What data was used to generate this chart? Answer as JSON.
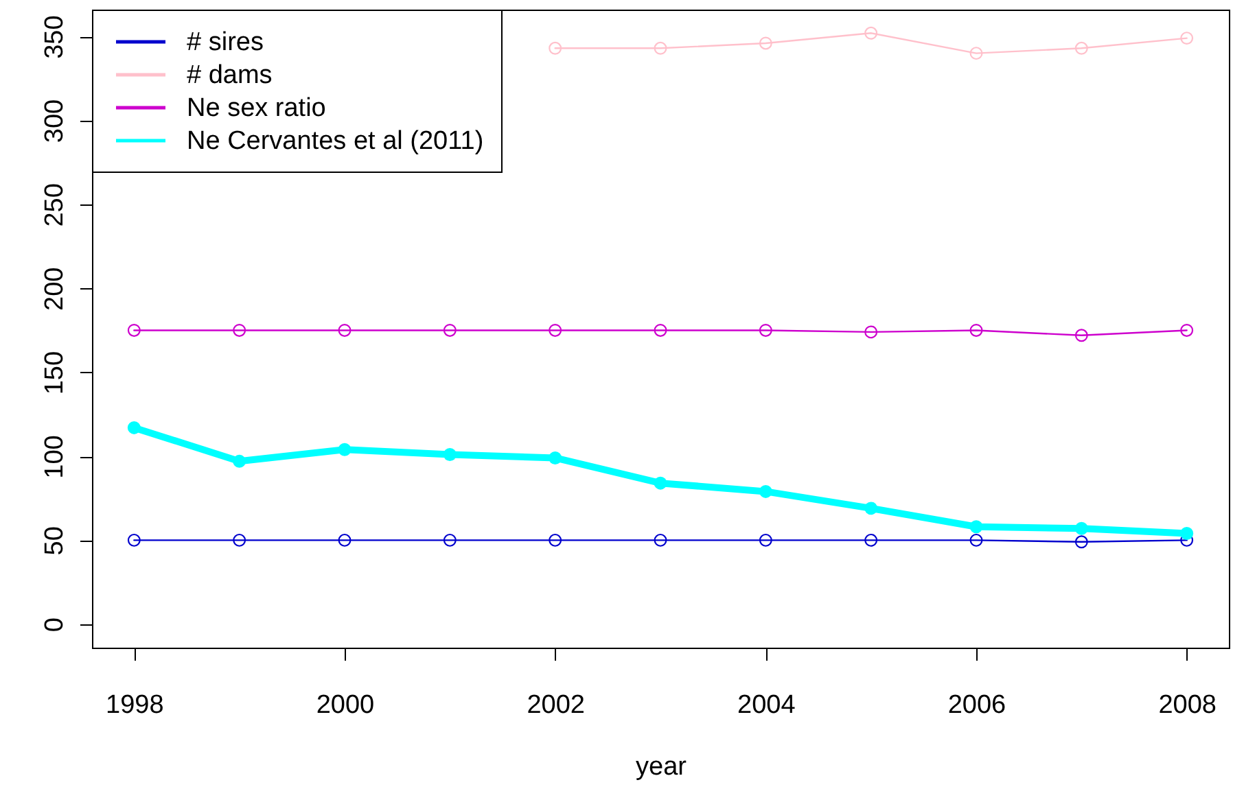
{
  "chart_data": {
    "type": "line",
    "xlabel": "year",
    "x": [
      1998,
      1999,
      2000,
      2001,
      2002,
      2003,
      2004,
      2005,
      2006,
      2007,
      2008
    ],
    "xlim": [
      1997.6,
      2008.4
    ],
    "xticks": [
      1998,
      2000,
      2002,
      2004,
      2006,
      2008
    ],
    "ylim": [
      -14,
      366
    ],
    "yticks": [
      0,
      50,
      100,
      150,
      200,
      250,
      300,
      350
    ],
    "grid": false,
    "legend": "top left",
    "marker": "circle",
    "series": [
      {
        "name": "# sires",
        "color": "#0000cd",
        "values": [
          50,
          50,
          50,
          50,
          50,
          50,
          50,
          50,
          50,
          49,
          50
        ]
      },
      {
        "name": "# dams",
        "color": "#ffc0cb",
        "values": [
          null,
          null,
          null,
          null,
          343,
          343,
          346,
          352,
          340,
          343,
          349
        ]
      },
      {
        "name": "Ne sex ratio",
        "color": "#cd00cd",
        "values": [
          175,
          175,
          175,
          175,
          175,
          175,
          175,
          174,
          175,
          172,
          175
        ]
      },
      {
        "name": "Ne Cervantes et al (2011)",
        "color": "#00ffff",
        "values": [
          117,
          97,
          104,
          101,
          99,
          84,
          79,
          69,
          58,
          57,
          54
        ]
      }
    ]
  }
}
